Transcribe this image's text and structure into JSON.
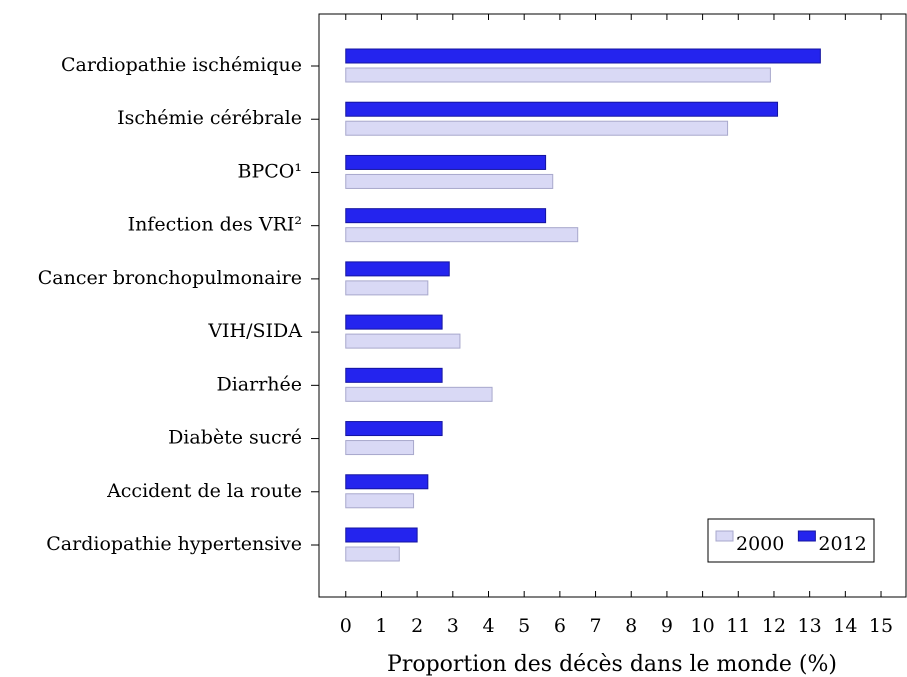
{
  "chart_data": {
    "type": "barh",
    "xlabel": "Proportion des décès dans le monde (%)",
    "categories": [
      "Cardiopathie ischémique",
      "Ischémie cérébrale",
      "BPCO¹",
      "Infection des VRI²",
      "Cancer bronchopulmonaire",
      "VIH/SIDA",
      "Diarrhée",
      "Diabète sucré",
      "Accident de la route",
      "Cardiopathie hypertensive"
    ],
    "series": [
      {
        "name": "2000",
        "color": "#d9d9f5",
        "values": [
          11.9,
          10.7,
          5.8,
          6.5,
          2.3,
          3.2,
          4.1,
          1.9,
          1.9,
          1.5
        ]
      },
      {
        "name": "2012",
        "color": "#2424ee",
        "values": [
          13.3,
          12.1,
          5.6,
          5.6,
          2.9,
          2.7,
          2.7,
          2.7,
          2.3,
          2.0
        ]
      }
    ],
    "xlim": [
      -0.75,
      15.7
    ],
    "xticks": [
      0,
      1,
      2,
      3,
      4,
      5,
      6,
      7,
      8,
      9,
      10,
      11,
      12,
      13,
      14,
      15
    ],
    "legend": "lower right"
  }
}
